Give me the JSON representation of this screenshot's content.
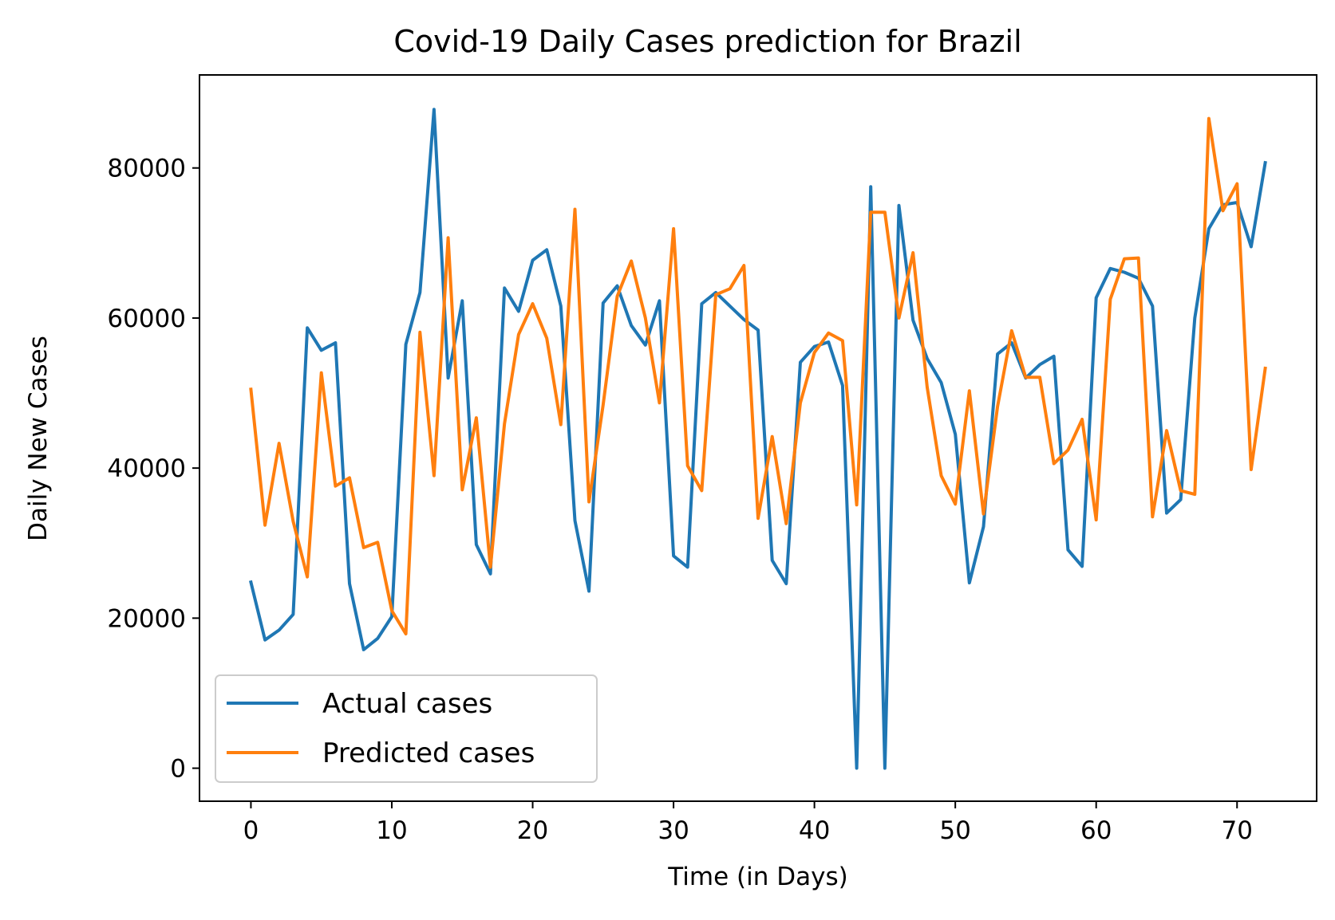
{
  "colors": {
    "actual": "#1f77b4",
    "predicted": "#ff7f0e",
    "axes": "#000000",
    "background": "#ffffff"
  },
  "chart_data": {
    "type": "line",
    "title": "Covid-19 Daily Cases prediction for Brazil",
    "xlabel": "Time (in Days)",
    "ylabel": "Daily New Cases",
    "xlim": [
      -3.65,
      75.65
    ],
    "ylim": [
      -4400,
      92400
    ],
    "xticks": [
      0,
      10,
      20,
      30,
      40,
      50,
      60,
      70
    ],
    "xtick_labels": [
      "0",
      "10",
      "20",
      "30",
      "40",
      "50",
      "60",
      "70"
    ],
    "yticks": [
      0,
      20000,
      40000,
      60000,
      80000
    ],
    "ytick_labels": [
      "0",
      "20000",
      "40000",
      "60000",
      "80000"
    ],
    "grid": false,
    "legend_position": "lower-left",
    "x": [
      0,
      1,
      2,
      3,
      4,
      5,
      6,
      7,
      8,
      9,
      10,
      11,
      12,
      13,
      14,
      15,
      16,
      17,
      18,
      19,
      20,
      21,
      22,
      23,
      24,
      25,
      26,
      27,
      28,
      29,
      30,
      31,
      32,
      33,
      34,
      35,
      36,
      37,
      38,
      39,
      40,
      41,
      42,
      43,
      44,
      45,
      46,
      47,
      48,
      49,
      50,
      51,
      52,
      53,
      54,
      55,
      56,
      57,
      58,
      59,
      60,
      61,
      62,
      63,
      64,
      65,
      66,
      67,
      68,
      69,
      70,
      71,
      72
    ],
    "series": [
      {
        "name": "Actual cases",
        "color": "#1f77b4",
        "values": [
          24800,
          17100,
          18400,
          20500,
          58700,
          55700,
          56700,
          24600,
          15800,
          17300,
          20200,
          56500,
          63400,
          87800,
          52000,
          62300,
          29800,
          25900,
          64000,
          60900,
          67700,
          69100,
          61600,
          33000,
          23600,
          62000,
          64300,
          59000,
          56400,
          62300,
          28300,
          26800,
          61900,
          63400,
          61600,
          59800,
          58400,
          27700,
          24600,
          54100,
          56200,
          56800,
          51000,
          0,
          77500,
          0,
          75000,
          59700,
          54600,
          51400,
          44500,
          24700,
          32200,
          55200,
          56700,
          52000,
          53800,
          54900,
          29100,
          26900,
          62700,
          66600,
          66100,
          65300,
          61600,
          34000,
          35800,
          60000,
          71900,
          75100,
          75400,
          69500,
          80700
        ]
      },
      {
        "name": "Predicted cases",
        "color": "#ff7f0e",
        "values": [
          50500,
          32400,
          43300,
          32900,
          25500,
          52700,
          37600,
          38700,
          29400,
          30100,
          21000,
          17900,
          58100,
          39000,
          70700,
          37100,
          46700,
          26800,
          45900,
          57800,
          61900,
          57300,
          45800,
          74500,
          35500,
          48400,
          62900,
          67600,
          60000,
          48700,
          71900,
          40300,
          37000,
          63100,
          63900,
          67000,
          33300,
          44200,
          32600,
          48700,
          55400,
          58000,
          57000,
          35100,
          74100,
          74100,
          60000,
          68700,
          50800,
          39000,
          35200,
          50300,
          33900,
          48200,
          58300,
          52100,
          52100,
          40600,
          42400,
          46500,
          33100,
          62500,
          67900,
          68000,
          33500,
          45000,
          37000,
          36500,
          86600,
          74300,
          77900,
          39800,
          53300
        ]
      }
    ]
  }
}
